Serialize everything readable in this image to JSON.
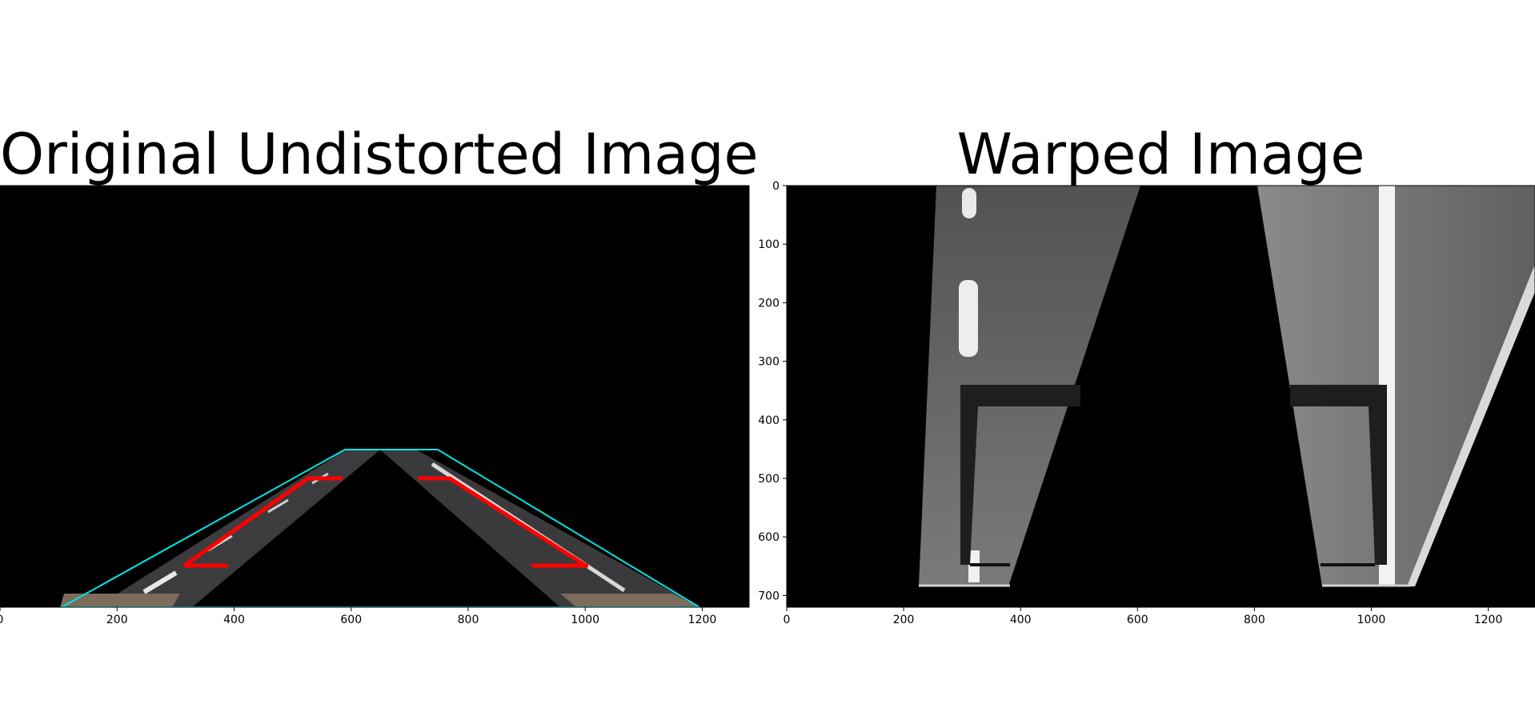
{
  "panels": [
    {
      "title": "Original Undistorted Image",
      "x_ticks": [
        "0",
        "200",
        "400",
        "600",
        "800",
        "1000",
        "1200"
      ],
      "x_tick_values": [
        0,
        200,
        400,
        600,
        800,
        1000,
        1200
      ]
    },
    {
      "title": "Warped Image",
      "x_ticks": [
        "0",
        "200",
        "400",
        "600",
        "800",
        "1000",
        "1200"
      ],
      "x_tick_values": [
        0,
        200,
        400,
        600,
        800,
        1000,
        1200
      ],
      "y_ticks": [
        "0",
        "100",
        "200",
        "300",
        "400",
        "500",
        "600",
        "700"
      ],
      "y_tick_values": [
        0,
        100,
        200,
        300,
        400,
        500,
        600,
        700
      ]
    }
  ],
  "chart_data": [
    {
      "type": "image",
      "title": "Original Undistorted Image",
      "xlim": [
        0,
        1280
      ],
      "ylim": [
        720,
        0
      ],
      "source_polygon": [
        [
          585,
          450
        ],
        [
          745,
          450
        ],
        [
          1195,
          720
        ],
        [
          105,
          720
        ]
      ],
      "colors": {
        "source_outline": "#00e5e5",
        "lane_marker": "#ff0000",
        "road": "#3a3a3c",
        "background": "#000000"
      }
    },
    {
      "type": "image",
      "title": "Warped Image",
      "xlim": [
        0,
        1280
      ],
      "ylim": [
        720,
        0
      ],
      "colors": {
        "road": "#6e6e6e",
        "lane_line": "#f0f0f0",
        "background": "#000000"
      }
    }
  ]
}
